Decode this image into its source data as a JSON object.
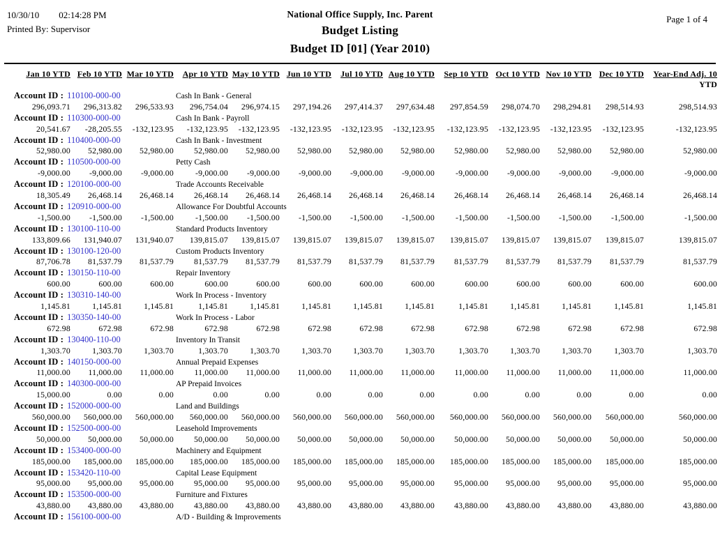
{
  "page_header": {
    "date": "10/30/10",
    "time": "02:14:28 PM",
    "printed_by": "Printed By: Supervisor",
    "company": "National Office Supply, Inc. Parent",
    "report_title": "Budget Listing",
    "report_subtitle": "Budget ID [01] (Year 2010)",
    "page_label": "Page 1 of 4"
  },
  "table": {
    "account_id_label": "Account ID :",
    "columns": [
      "Jan 10 YTD",
      "Feb 10 YTD",
      "Mar 10 YTD",
      "Apr 10 YTD",
      "May 10 YTD",
      "Jun 10 YTD",
      "Jul 10 YTD",
      "Aug 10 YTD",
      "Sep 10 YTD",
      "Oct 10 YTD",
      "Nov 10 YTD",
      "Dec 10 YTD"
    ],
    "year_end_column": {
      "line1": "Year-End Adj. 10",
      "line2": "YTD"
    },
    "rows": [
      {
        "account_id": "110100-000-00",
        "description": "Cash In Bank - General",
        "values": [
          "296,093.71",
          "296,313.82",
          "296,533.93",
          "296,754.04",
          "296,974.15",
          "297,194.26",
          "297,414.37",
          "297,634.48",
          "297,854.59",
          "298,074.70",
          "298,294.81",
          "298,514.93",
          "298,514.93"
        ]
      },
      {
        "account_id": "110300-000-00",
        "description": "Cash In Bank - Payroll",
        "values": [
          "20,541.67",
          "-28,205.55",
          "-132,123.95",
          "-132,123.95",
          "-132,123.95",
          "-132,123.95",
          "-132,123.95",
          "-132,123.95",
          "-132,123.95",
          "-132,123.95",
          "-132,123.95",
          "-132,123.95",
          "-132,123.95"
        ]
      },
      {
        "account_id": "110400-000-00",
        "description": "Cash In Bank - Investment",
        "values": [
          "52,980.00",
          "52,980.00",
          "52,980.00",
          "52,980.00",
          "52,980.00",
          "52,980.00",
          "52,980.00",
          "52,980.00",
          "52,980.00",
          "52,980.00",
          "52,980.00",
          "52,980.00",
          "52,980.00"
        ]
      },
      {
        "account_id": "110500-000-00",
        "description": "Petty Cash",
        "values": [
          "-9,000.00",
          "-9,000.00",
          "-9,000.00",
          "-9,000.00",
          "-9,000.00",
          "-9,000.00",
          "-9,000.00",
          "-9,000.00",
          "-9,000.00",
          "-9,000.00",
          "-9,000.00",
          "-9,000.00",
          "-9,000.00"
        ]
      },
      {
        "account_id": "120100-000-00",
        "description": "Trade Accounts Receivable",
        "values": [
          "18,305.49",
          "26,468.14",
          "26,468.14",
          "26,468.14",
          "26,468.14",
          "26,468.14",
          "26,468.14",
          "26,468.14",
          "26,468.14",
          "26,468.14",
          "26,468.14",
          "26,468.14",
          "26,468.14"
        ]
      },
      {
        "account_id": "120910-000-00",
        "description": "Allowance For Doubtful Accounts",
        "values": [
          "-1,500.00",
          "-1,500.00",
          "-1,500.00",
          "-1,500.00",
          "-1,500.00",
          "-1,500.00",
          "-1,500.00",
          "-1,500.00",
          "-1,500.00",
          "-1,500.00",
          "-1,500.00",
          "-1,500.00",
          "-1,500.00"
        ]
      },
      {
        "account_id": "130100-110-00",
        "description": "Standard Products Inventory",
        "values": [
          "133,809.66",
          "131,940.07",
          "131,940.07",
          "139,815.07",
          "139,815.07",
          "139,815.07",
          "139,815.07",
          "139,815.07",
          "139,815.07",
          "139,815.07",
          "139,815.07",
          "139,815.07",
          "139,815.07"
        ]
      },
      {
        "account_id": "130100-120-00",
        "description": "Custom Products Inventory",
        "values": [
          "87,706.78",
          "81,537.79",
          "81,537.79",
          "81,537.79",
          "81,537.79",
          "81,537.79",
          "81,537.79",
          "81,537.79",
          "81,537.79",
          "81,537.79",
          "81,537.79",
          "81,537.79",
          "81,537.79"
        ]
      },
      {
        "account_id": "130150-110-00",
        "description": "Repair Inventory",
        "values": [
          "600.00",
          "600.00",
          "600.00",
          "600.00",
          "600.00",
          "600.00",
          "600.00",
          "600.00",
          "600.00",
          "600.00",
          "600.00",
          "600.00",
          "600.00"
        ]
      },
      {
        "account_id": "130310-140-00",
        "description": "Work In Process - Inventory",
        "values": [
          "1,145.81",
          "1,145.81",
          "1,145.81",
          "1,145.81",
          "1,145.81",
          "1,145.81",
          "1,145.81",
          "1,145.81",
          "1,145.81",
          "1,145.81",
          "1,145.81",
          "1,145.81",
          "1,145.81"
        ]
      },
      {
        "account_id": "130350-140-00",
        "description": "Work In Process - Labor",
        "values": [
          "672.98",
          "672.98",
          "672.98",
          "672.98",
          "672.98",
          "672.98",
          "672.98",
          "672.98",
          "672.98",
          "672.98",
          "672.98",
          "672.98",
          "672.98"
        ]
      },
      {
        "account_id": "130400-110-00",
        "description": "Inventory In Transit",
        "values": [
          "1,303.70",
          "1,303.70",
          "1,303.70",
          "1,303.70",
          "1,303.70",
          "1,303.70",
          "1,303.70",
          "1,303.70",
          "1,303.70",
          "1,303.70",
          "1,303.70",
          "1,303.70",
          "1,303.70"
        ]
      },
      {
        "account_id": "140150-000-00",
        "description": "Annual Prepaid Expenses",
        "values": [
          "11,000.00",
          "11,000.00",
          "11,000.00",
          "11,000.00",
          "11,000.00",
          "11,000.00",
          "11,000.00",
          "11,000.00",
          "11,000.00",
          "11,000.00",
          "11,000.00",
          "11,000.00",
          "11,000.00"
        ]
      },
      {
        "account_id": "140300-000-00",
        "description": "AP Prepaid Invoices",
        "values": [
          "15,000.00",
          "0.00",
          "0.00",
          "0.00",
          "0.00",
          "0.00",
          "0.00",
          "0.00",
          "0.00",
          "0.00",
          "0.00",
          "0.00",
          "0.00"
        ]
      },
      {
        "account_id": "152000-000-00",
        "description": "Land and Buildings",
        "values": [
          "560,000.00",
          "560,000.00",
          "560,000.00",
          "560,000.00",
          "560,000.00",
          "560,000.00",
          "560,000.00",
          "560,000.00",
          "560,000.00",
          "560,000.00",
          "560,000.00",
          "560,000.00",
          "560,000.00"
        ]
      },
      {
        "account_id": "152500-000-00",
        "description": "Leasehold Improvements",
        "values": [
          "50,000.00",
          "50,000.00",
          "50,000.00",
          "50,000.00",
          "50,000.00",
          "50,000.00",
          "50,000.00",
          "50,000.00",
          "50,000.00",
          "50,000.00",
          "50,000.00",
          "50,000.00",
          "50,000.00"
        ]
      },
      {
        "account_id": "153400-000-00",
        "description": "Machinery and Equipment",
        "values": [
          "185,000.00",
          "185,000.00",
          "185,000.00",
          "185,000.00",
          "185,000.00",
          "185,000.00",
          "185,000.00",
          "185,000.00",
          "185,000.00",
          "185,000.00",
          "185,000.00",
          "185,000.00",
          "185,000.00"
        ]
      },
      {
        "account_id": "153420-110-00",
        "description": "Capital Lease Equipment",
        "values": [
          "95,000.00",
          "95,000.00",
          "95,000.00",
          "95,000.00",
          "95,000.00",
          "95,000.00",
          "95,000.00",
          "95,000.00",
          "95,000.00",
          "95,000.00",
          "95,000.00",
          "95,000.00",
          "95,000.00"
        ]
      },
      {
        "account_id": "153500-000-00",
        "description": "Furniture and Fixtures",
        "values": [
          "43,880.00",
          "43,880.00",
          "43,880.00",
          "43,880.00",
          "43,880.00",
          "43,880.00",
          "43,880.00",
          "43,880.00",
          "43,880.00",
          "43,880.00",
          "43,880.00",
          "43,880.00",
          "43,880.00"
        ]
      },
      {
        "account_id": "156100-000-00",
        "description": "A/D - Building & Improvements",
        "values": []
      }
    ]
  },
  "colors": {
    "text": "#000000",
    "account_link": "#3333CC"
  }
}
